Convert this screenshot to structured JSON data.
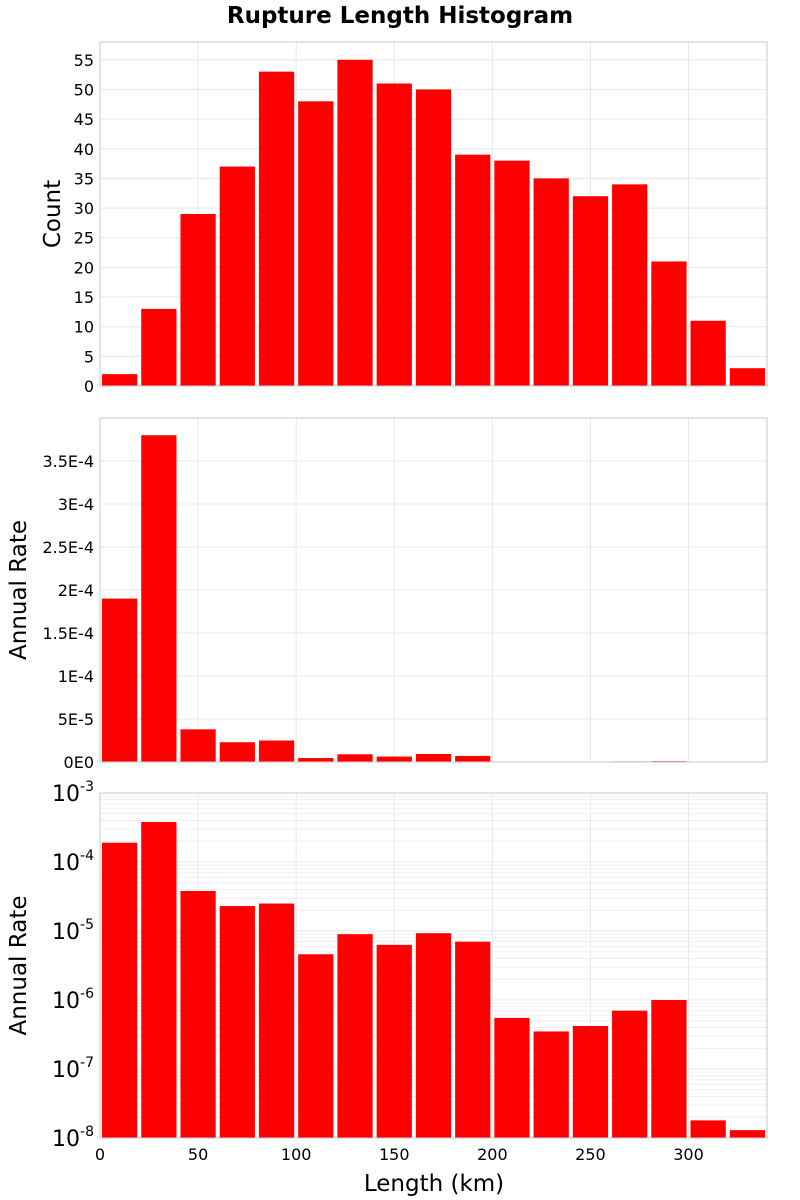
{
  "chart_data": {
    "type": "bar",
    "title": "Rupture Length Histogram",
    "xlabel": "Length (km)",
    "xlim": [
      0,
      340
    ],
    "x_ticks": [
      0,
      50,
      100,
      150,
      200,
      250,
      300
    ],
    "bin_edges": [
      0,
      20,
      40,
      60,
      80,
      100,
      120,
      140,
      160,
      180,
      200,
      220,
      240,
      260,
      280,
      300,
      320,
      340
    ],
    "bar_color": "#ff0000",
    "panels": [
      {
        "ylabel": "Count",
        "scale": "linear",
        "ylim": [
          0,
          58
        ],
        "y_ticks": [
          0,
          5,
          10,
          15,
          20,
          25,
          30,
          35,
          40,
          45,
          50,
          55
        ],
        "y_tick_labels": [
          "0",
          "5",
          "10",
          "15",
          "20",
          "25",
          "30",
          "35",
          "40",
          "45",
          "50",
          "55"
        ],
        "values": [
          2,
          13,
          29,
          37,
          53,
          48,
          55,
          51,
          50,
          39,
          38,
          35,
          32,
          34,
          21,
          11,
          3
        ]
      },
      {
        "ylabel": "Annual Rate",
        "scale": "linear",
        "ylim": [
          0,
          0.0004
        ],
        "y_ticks": [
          0,
          5e-05,
          0.0001,
          0.00015,
          0.0002,
          0.00025,
          0.0003,
          0.00035
        ],
        "y_tick_labels": [
          "0E0",
          "5E-5",
          "1E-4",
          "1.5E-4",
          "2E-4",
          "2.5E-4",
          "3E-4",
          "3.5E-4"
        ],
        "values": [
          0.00019,
          0.00038,
          3.8e-05,
          2.3e-05,
          2.5e-05,
          4.6e-06,
          9e-06,
          6.3e-06,
          9.3e-06,
          7e-06,
          5.5e-07,
          3.5e-07,
          4.2e-07,
          7e-07,
          1e-06,
          1.8e-08,
          1.3e-08
        ]
      },
      {
        "ylabel": "Annual Rate",
        "scale": "log",
        "ylim": [
          1e-08,
          0.001
        ],
        "y_ticks": [
          1e-08,
          1e-07,
          1e-06,
          1e-05,
          0.0001,
          0.001
        ],
        "y_tick_exponents": [
          "-8",
          "-7",
          "-6",
          "-5",
          "-4",
          "-3"
        ],
        "y_tick_base": "10",
        "values": [
          0.00019,
          0.00038,
          3.8e-05,
          2.3e-05,
          2.5e-05,
          4.6e-06,
          9e-06,
          6.3e-06,
          9.3e-06,
          7e-06,
          5.5e-07,
          3.5e-07,
          4.2e-07,
          7e-07,
          1e-06,
          1.8e-08,
          1.3e-08
        ]
      }
    ]
  }
}
